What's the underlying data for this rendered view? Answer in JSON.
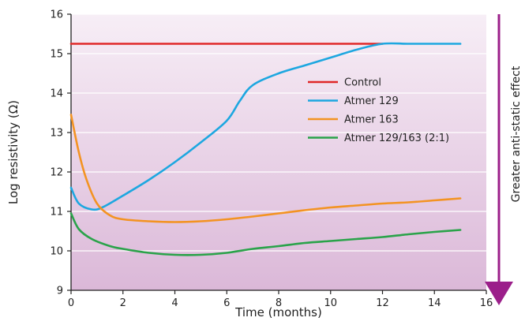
{
  "chart_data": {
    "type": "line",
    "xlabel": "Time (months)",
    "ylabel": "Log resistivity (Ω)",
    "xlim": [
      0,
      16
    ],
    "ylim": [
      9,
      16
    ],
    "x_ticks": [
      0,
      2,
      4,
      6,
      8,
      10,
      12,
      14,
      16
    ],
    "y_ticks": [
      9,
      10,
      11,
      12,
      13,
      14,
      15,
      16
    ],
    "legend_position": "upper-right inside plot",
    "side_annotation": "Greater anti-static effect",
    "annotation_arrow_color": "#9b1f8a",
    "background_gradient": [
      "#f7eef6",
      "#dbb8d8"
    ],
    "series": [
      {
        "name": "Control",
        "color": "#e02828",
        "points": [
          [
            0,
            15.25
          ],
          [
            12,
            15.25
          ]
        ]
      },
      {
        "name": "Atmer 129",
        "color": "#1da7e0",
        "points": [
          [
            0,
            11.6
          ],
          [
            0.3,
            11.2
          ],
          [
            0.8,
            11.05
          ],
          [
            1.2,
            11.1
          ],
          [
            2,
            11.4
          ],
          [
            3,
            11.8
          ],
          [
            4,
            12.25
          ],
          [
            5,
            12.75
          ],
          [
            6,
            13.3
          ],
          [
            6.5,
            13.8
          ],
          [
            7,
            14.2
          ],
          [
            8,
            14.5
          ],
          [
            9,
            14.7
          ],
          [
            10,
            14.9
          ],
          [
            11,
            15.1
          ],
          [
            12,
            15.25
          ],
          [
            13,
            15.25
          ],
          [
            14,
            15.25
          ],
          [
            15,
            15.25
          ]
        ]
      },
      {
        "name": "Atmer 163",
        "color": "#f39322",
        "points": [
          [
            0,
            13.45
          ],
          [
            0.3,
            12.5
          ],
          [
            0.6,
            11.8
          ],
          [
            1,
            11.2
          ],
          [
            1.5,
            10.9
          ],
          [
            2,
            10.8
          ],
          [
            3,
            10.75
          ],
          [
            4,
            10.73
          ],
          [
            5,
            10.75
          ],
          [
            6,
            10.8
          ],
          [
            7,
            10.87
          ],
          [
            8,
            10.95
          ],
          [
            9,
            11.03
          ],
          [
            10,
            11.1
          ],
          [
            11,
            11.15
          ],
          [
            12,
            11.2
          ],
          [
            13,
            11.23
          ],
          [
            14,
            11.28
          ],
          [
            15,
            11.33
          ]
        ]
      },
      {
        "name": "Atmer 129/163 (2:1)",
        "color": "#2aa34a",
        "points": [
          [
            0,
            10.95
          ],
          [
            0.3,
            10.55
          ],
          [
            0.8,
            10.3
          ],
          [
            1.5,
            10.12
          ],
          [
            2,
            10.05
          ],
          [
            3,
            9.95
          ],
          [
            4,
            9.9
          ],
          [
            5,
            9.9
          ],
          [
            6,
            9.95
          ],
          [
            7,
            10.05
          ],
          [
            8,
            10.12
          ],
          [
            9,
            10.2
          ],
          [
            10,
            10.25
          ],
          [
            11,
            10.3
          ],
          [
            12,
            10.35
          ],
          [
            13,
            10.42
          ],
          [
            14,
            10.48
          ],
          [
            15,
            10.53
          ]
        ]
      }
    ]
  }
}
